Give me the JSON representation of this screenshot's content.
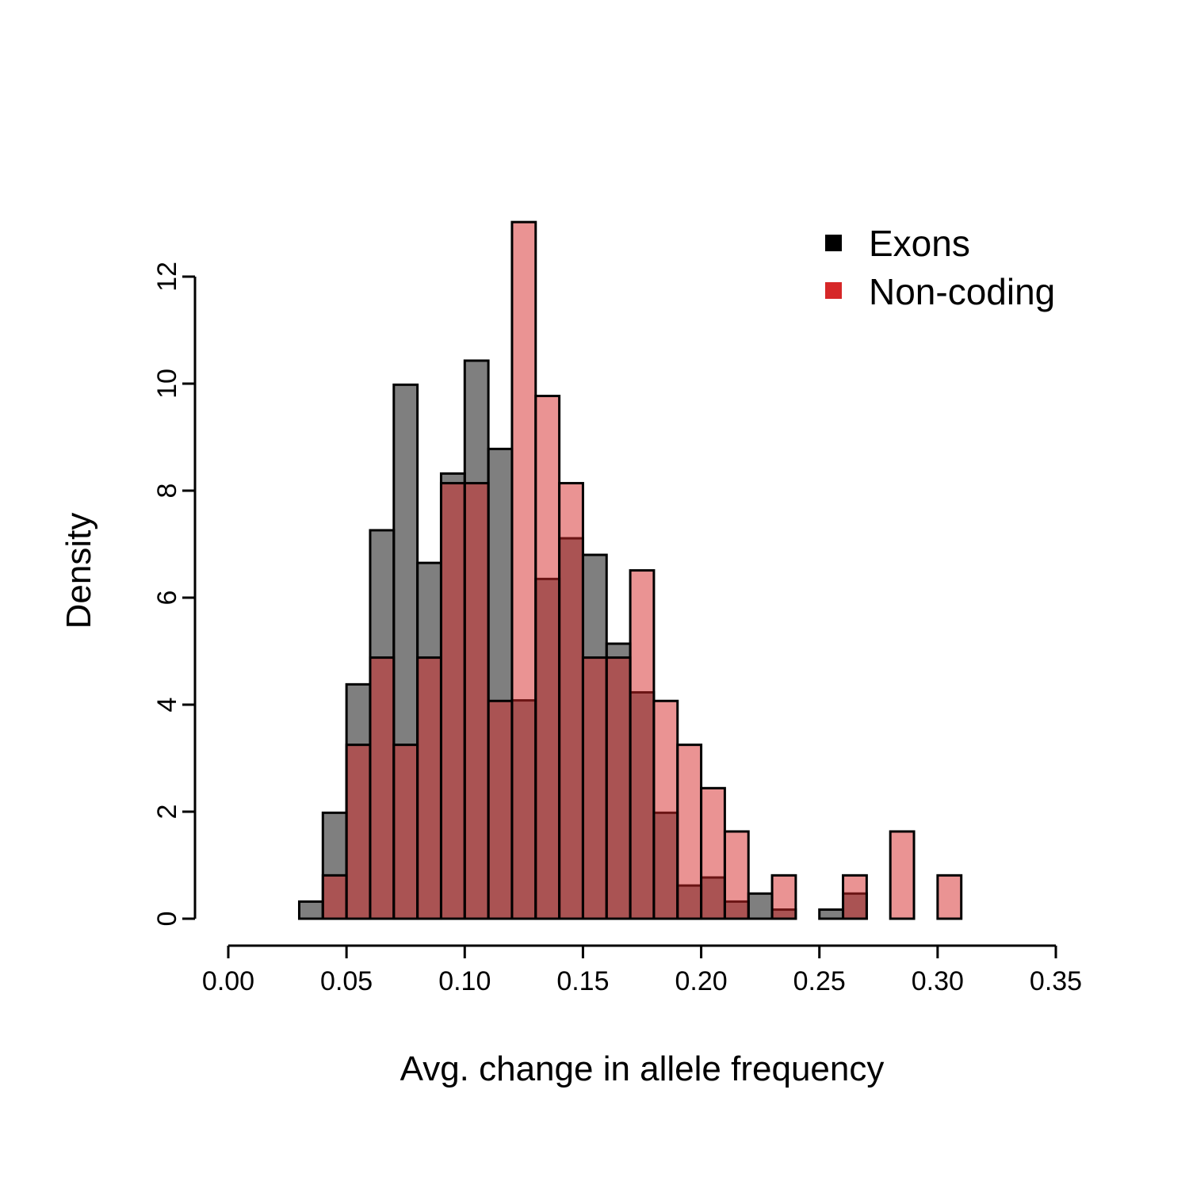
{
  "chart_data": {
    "type": "histogram",
    "xlabel": "Avg. change in allele frequency",
    "ylabel": "Density",
    "xlim": [
      0.0,
      0.35
    ],
    "ylim": [
      0,
      13
    ],
    "x_ticks": [
      "0.00",
      "0.05",
      "0.10",
      "0.15",
      "0.20",
      "0.25",
      "0.30",
      "0.35"
    ],
    "y_ticks": [
      "0",
      "2",
      "4",
      "6",
      "8",
      "10",
      "12"
    ],
    "bin_width": 0.01,
    "bin_starts": [
      0.03,
      0.04,
      0.05,
      0.06,
      0.07,
      0.08,
      0.09,
      0.1,
      0.11,
      0.12,
      0.13,
      0.14,
      0.15,
      0.16,
      0.17,
      0.18,
      0.19,
      0.2,
      0.21,
      0.22,
      0.23,
      0.24,
      0.25,
      0.26,
      0.27,
      0.28,
      0.29,
      0.3
    ],
    "series": [
      {
        "name": "Exons",
        "color": "#000000",
        "values": [
          0.32,
          1.98,
          4.38,
          7.26,
          9.98,
          6.65,
          8.32,
          10.43,
          8.78,
          4.08,
          6.35,
          7.11,
          6.8,
          5.14,
          4.23,
          1.98,
          0.62,
          0.77,
          0.32,
          0.47,
          0.17,
          0.0,
          0.17,
          0.47,
          0.0,
          0.0,
          0.0,
          0.0
        ]
      },
      {
        "name": "Non-coding",
        "color": "#d62728",
        "values": [
          0.0,
          0.81,
          3.25,
          4.88,
          3.25,
          4.88,
          8.14,
          8.14,
          4.07,
          13.02,
          9.77,
          8.14,
          4.88,
          4.88,
          6.51,
          4.07,
          3.25,
          2.44,
          1.63,
          0.0,
          0.81,
          0.0,
          0.0,
          0.81,
          0.0,
          1.63,
          0.0,
          0.81
        ]
      }
    ],
    "legend": {
      "placement": "top-right",
      "entries": [
        "Exons",
        "Non-coding"
      ],
      "colors": [
        "#000000",
        "#d62728"
      ]
    },
    "grid": false
  }
}
